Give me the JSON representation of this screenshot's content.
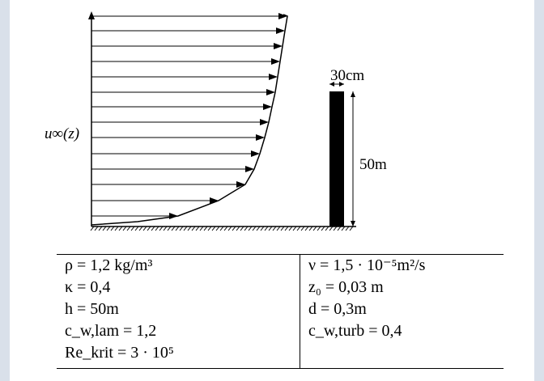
{
  "diagram": {
    "velocity_label": "u∞(z)",
    "width_label": "30cm",
    "height_label": "50m"
  },
  "table": {
    "left": [
      "ρ = 1,2 kg/m³",
      "κ = 0,4",
      "h = 50m",
      "c_w,lam = 1,2",
      "Re_krit = 3 · 10⁵"
    ],
    "right": [
      "ν = 1,5 · 10⁻⁵m²/s",
      "z₀ = 0,03 m",
      "d = 0,3m",
      "c_w,turb = 0,4"
    ]
  }
}
